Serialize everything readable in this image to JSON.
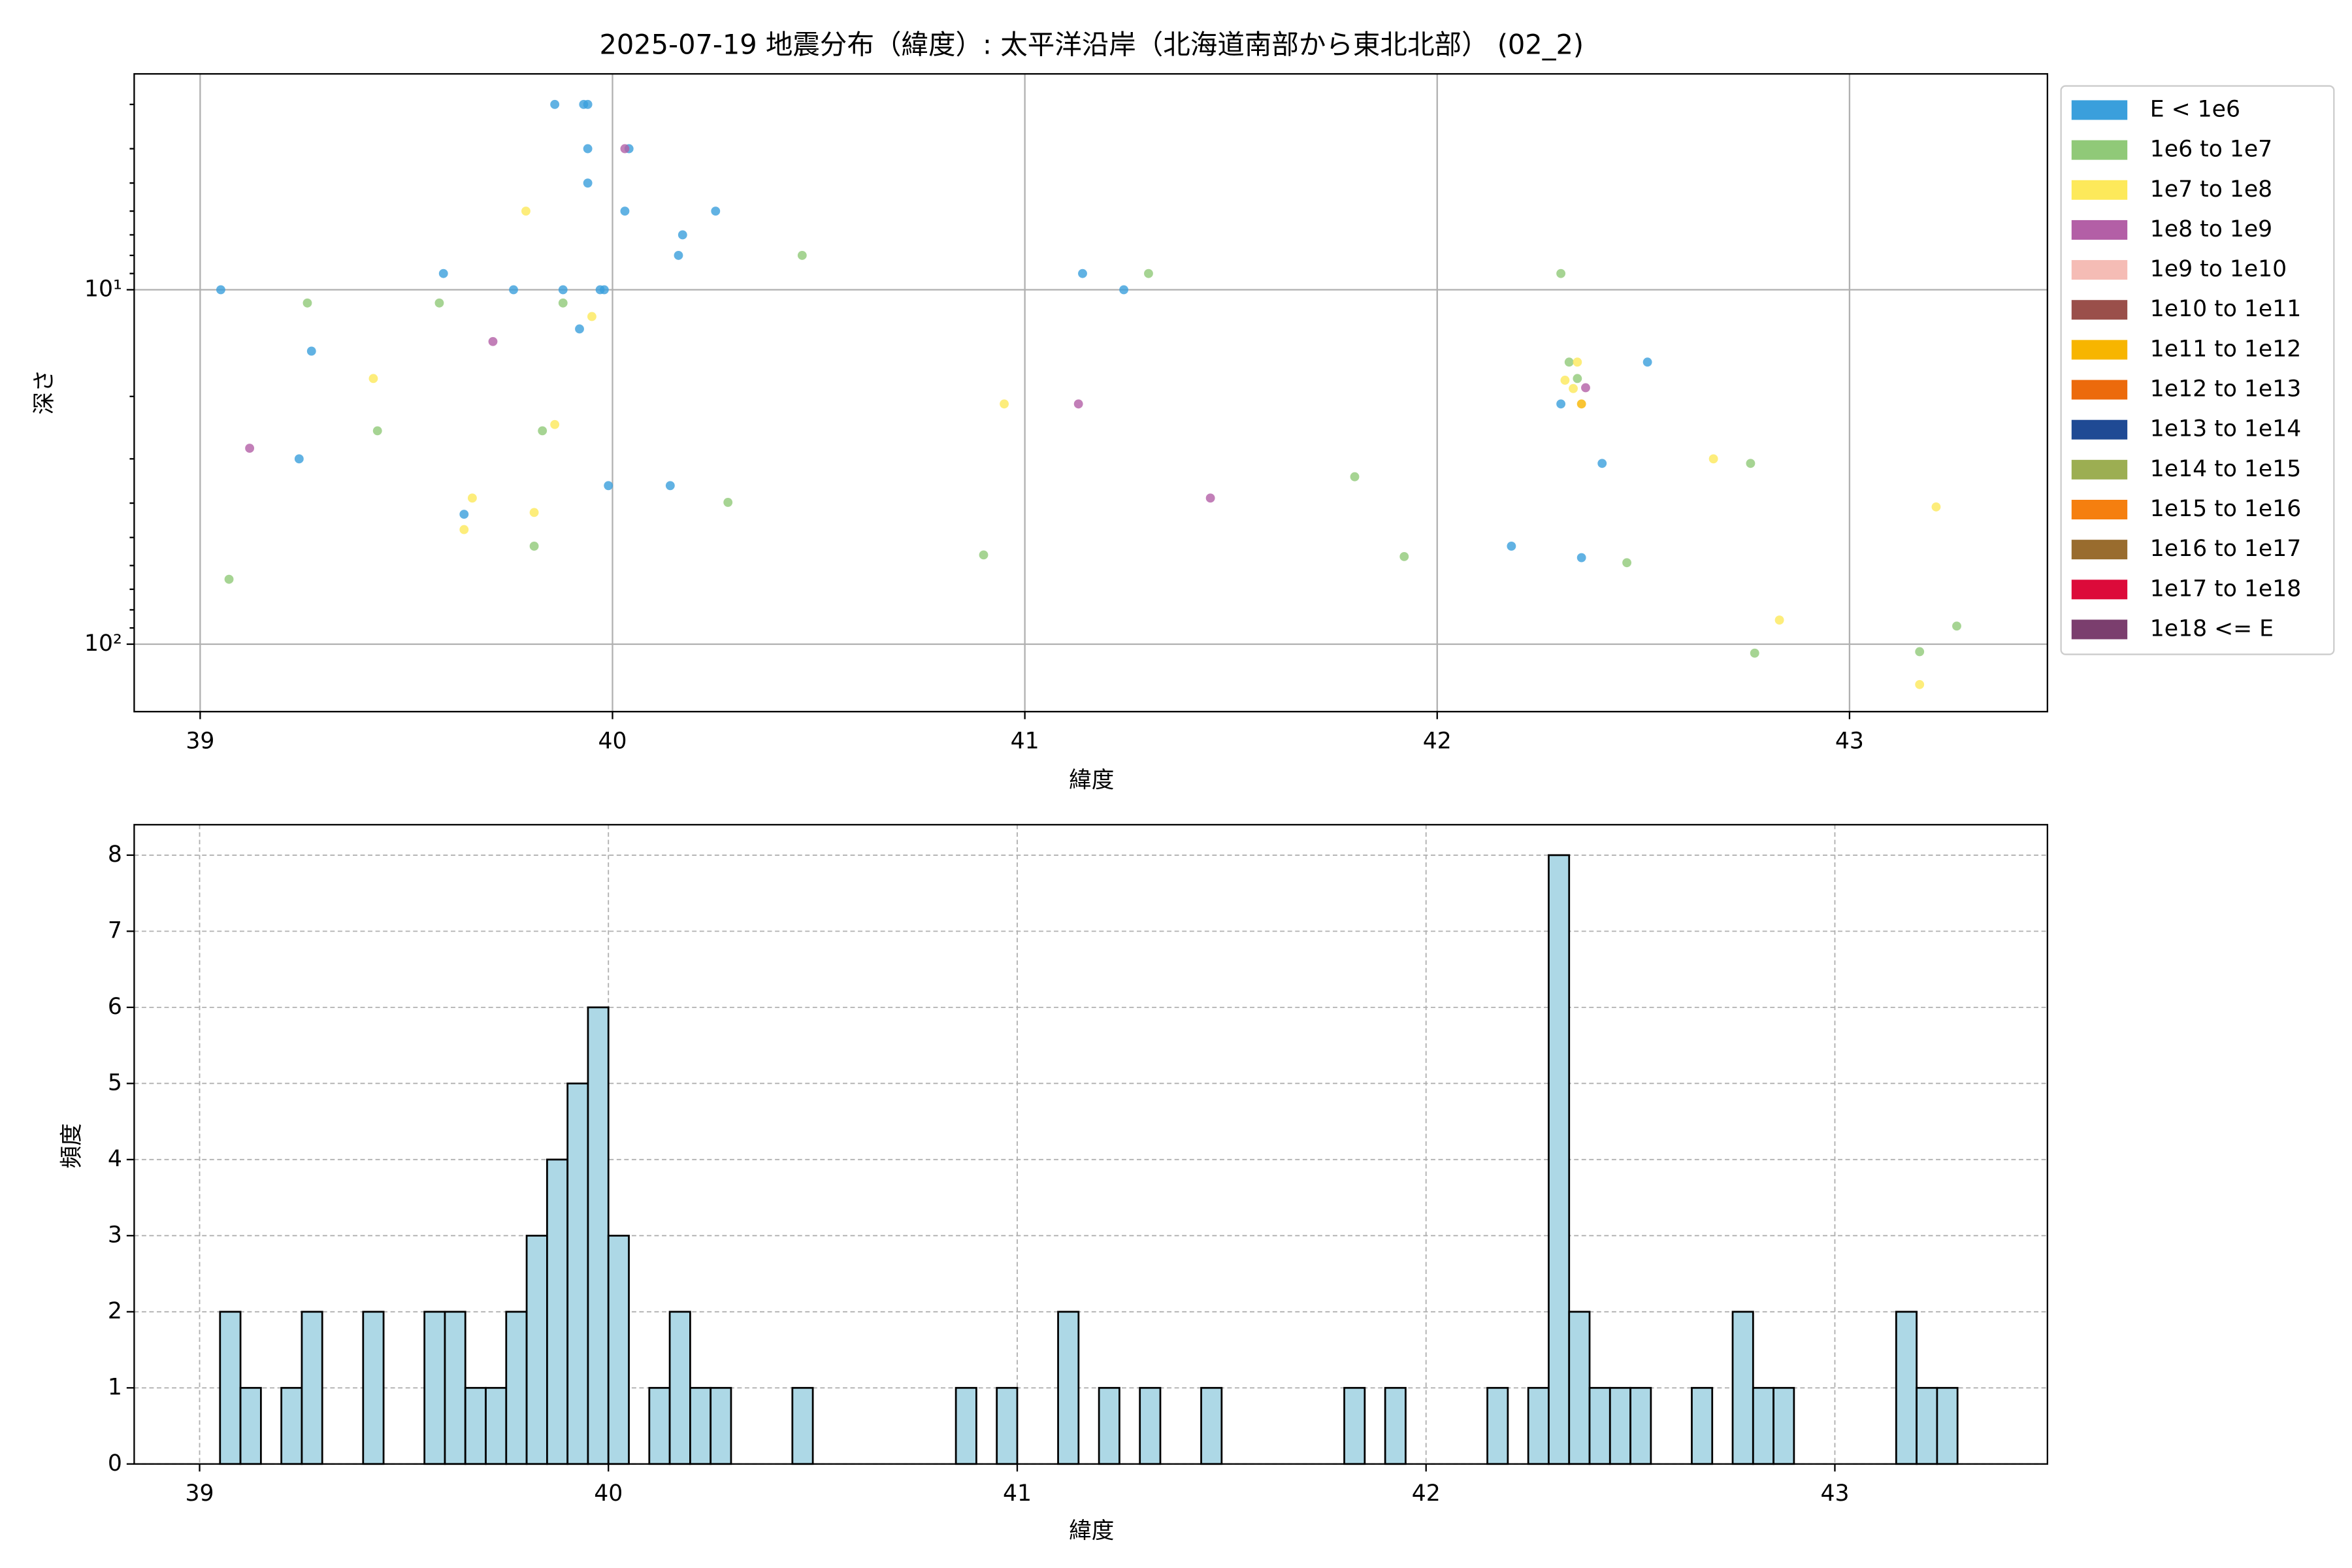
{
  "chart_data": [
    {
      "type": "scatter",
      "title": "2025-07-19 地震分布（緯度）: 太平洋沿岸（北海道南部から東北北部） (02_2)",
      "xlabel": "緯度",
      "ylabel": "深さ",
      "xlim": [
        38.84,
        43.48
      ],
      "xticks": [
        39,
        40,
        41,
        42,
        43
      ],
      "ylim": [
        2.46,
        155
      ],
      "y_log": true,
      "y_inverted": true,
      "yticks": [
        {
          "value": 10,
          "label": "10¹"
        },
        {
          "value": 100,
          "label": "10²"
        }
      ],
      "yminorticks": [
        3,
        4,
        5,
        6,
        7,
        8,
        9,
        20,
        30,
        40,
        50,
        60,
        70,
        80,
        90
      ],
      "grid": "solid",
      "legend": "outside-right",
      "series": [
        {
          "name": "E < 1e6",
          "color": "#3a9fdc",
          "x": [
            39.05,
            39.86,
            39.93,
            39.94,
            39.94,
            40.04,
            39.94,
            40.03,
            40.25,
            40.17,
            40.16,
            39.59,
            39.76,
            39.88,
            39.97,
            39.98,
            39.92,
            39.27,
            39.24,
            39.99,
            40.14,
            39.64,
            41.14,
            41.24,
            42.51,
            42.3,
            42.4,
            42.18,
            42.35
          ],
          "values": [
            10,
            3.0,
            3.0,
            3.0,
            4.0,
            4.0,
            5.0,
            6.0,
            6.0,
            7.0,
            8.0,
            9.0,
            10,
            10,
            10,
            10,
            12.9,
            14.9,
            30,
            35.7,
            35.7,
            43,
            9.0,
            10,
            16,
            21,
            30.9,
            52.9,
            57
          ]
        },
        {
          "name": "1e6 to 1e7",
          "color": "#90c978",
          "x": [
            39.26,
            39.58,
            39.88,
            39.43,
            39.83,
            39.07,
            39.81,
            40.28,
            40.46,
            40.9,
            41.3,
            41.8,
            41.92,
            42.3,
            42.32,
            42.34,
            42.46,
            42.76,
            42.77,
            43.17,
            43.26
          ],
          "values": [
            10.9,
            10.9,
            10.9,
            25,
            25,
            65.6,
            52.9,
            39.8,
            8.0,
            56,
            9.0,
            33.7,
            56.6,
            9.0,
            16,
            17.8,
            58.9,
            30.9,
            106,
            105,
            88.9
          ]
        },
        {
          "name": "1e7 to 1e8",
          "color": "#fde95a",
          "x": [
            39.79,
            39.95,
            39.42,
            39.86,
            39.66,
            39.81,
            39.64,
            40.95,
            42.34,
            42.31,
            42.33,
            42.67,
            42.83,
            43.21,
            43.17
          ],
          "values": [
            6.0,
            11.9,
            17.8,
            24,
            38.7,
            42.5,
            47.5,
            21,
            16,
            18,
            19,
            30,
            85.5,
            41,
            130
          ]
        },
        {
          "name": "1e8 to 1e9",
          "color": "#b35fa6",
          "x": [
            39.71,
            39.12,
            41.13,
            41.45,
            42.36,
            40.03
          ],
          "values": [
            14,
            28,
            21,
            38.7,
            18.9,
            4.0
          ]
        },
        {
          "name": "1e9 to 1e10",
          "color": "#f5bcb5",
          "x": [],
          "values": []
        },
        {
          "name": "1e10 to 1e11",
          "color": "#9a4f4a",
          "x": [],
          "values": []
        },
        {
          "name": "1e11 to 1e12",
          "color": "#f7b500",
          "x": [
            42.35
          ],
          "values": [
            21
          ]
        },
        {
          "name": "1e12 to 1e13",
          "color": "#ec6a0c",
          "x": [],
          "values": []
        },
        {
          "name": "1e13 to 1e14",
          "color": "#1f4a94",
          "x": [],
          "values": []
        },
        {
          "name": "1e14 to 1e15",
          "color": "#9cae52",
          "x": [],
          "values": []
        },
        {
          "name": "1e15 to 1e16",
          "color": "#f57f0f",
          "x": [],
          "values": []
        },
        {
          "name": "1e16 to 1e17",
          "color": "#996c2e",
          "x": [],
          "values": []
        },
        {
          "name": "1e17 to 1e18",
          "color": "#dc0b3a",
          "x": [],
          "values": []
        },
        {
          "name": "1e18 <= E",
          "color": "#7b3e6e",
          "x": [],
          "values": []
        }
      ]
    },
    {
      "type": "histogram",
      "xlabel": "緯度",
      "ylabel": "頻度",
      "xlim": [
        38.84,
        43.52
      ],
      "xticks": [
        39,
        40,
        41,
        42,
        43
      ],
      "ylim": [
        0,
        8.4
      ],
      "yticks": [
        0,
        1,
        2,
        3,
        4,
        5,
        6,
        7,
        8
      ],
      "grid": "dashed",
      "color": "#add8e6",
      "edgecolor": "#000000",
      "bins": [
        39.05,
        39.1,
        39.15,
        39.2,
        39.25,
        39.3,
        39.35,
        39.4,
        39.45,
        39.5,
        39.55,
        39.6,
        39.65,
        39.7,
        39.75,
        39.8,
        39.85,
        39.9,
        39.95,
        40.0,
        40.05,
        40.1,
        40.15,
        40.2,
        40.25,
        40.3,
        40.35,
        40.4,
        40.45,
        40.5,
        40.55,
        40.6,
        40.65,
        40.7,
        40.75,
        40.8,
        40.85,
        40.9,
        40.95,
        41.0,
        41.05,
        41.1,
        41.15,
        41.2,
        41.25,
        41.3,
        41.35,
        41.4,
        41.45,
        41.5,
        41.55,
        41.6,
        41.65,
        41.7,
        41.75,
        41.8,
        41.85,
        41.9,
        41.95,
        42.0,
        42.05,
        42.1,
        42.15,
        42.2,
        42.25,
        42.3,
        42.35,
        42.4,
        42.45,
        42.5,
        42.55,
        42.6,
        42.65,
        42.7,
        42.75,
        42.8,
        42.85,
        42.9,
        42.95,
        43.0,
        43.05,
        43.1,
        43.15,
        43.2,
        43.25,
        43.3
      ],
      "values": [
        2,
        1,
        0,
        1,
        2,
        0,
        0,
        2,
        0,
        0,
        2,
        2,
        1,
        1,
        2,
        3,
        4,
        5,
        6,
        3,
        0,
        1,
        2,
        1,
        1,
        0,
        0,
        0,
        1,
        0,
        0,
        0,
        0,
        0,
        0,
        0,
        1,
        0,
        1,
        0,
        0,
        2,
        0,
        1,
        0,
        1,
        0,
        0,
        1,
        0,
        0,
        0,
        0,
        0,
        0,
        1,
        0,
        1,
        0,
        0,
        0,
        0,
        1,
        0,
        1,
        8,
        2,
        1,
        1,
        1,
        0,
        0,
        1,
        0,
        2,
        1,
        1,
        0,
        0,
        0,
        0,
        0,
        2,
        1,
        1
      ]
    }
  ]
}
